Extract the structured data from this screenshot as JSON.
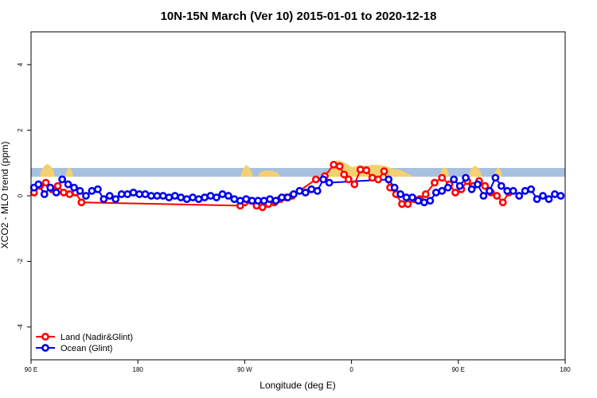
{
  "chart_data": {
    "type": "line",
    "title": "10N-15N March (Ver 10)   2015-01-01 to 2020-12-18",
    "xlabel": "Longitude (deg E)",
    "ylabel": "XCO2 - MLO trend (ppm)",
    "xlim": [
      90,
      450
    ],
    "ylim": [
      -5,
      5
    ],
    "x_ticks": [
      {
        "value": 90,
        "label": "90 E"
      },
      {
        "value": 162,
        "label": "180"
      },
      {
        "value": 234,
        "label": "90 W"
      },
      {
        "value": 306,
        "label": "0"
      },
      {
        "value": 378,
        "label": "90 E"
      },
      {
        "value": 450,
        "label": "180"
      }
    ],
    "y_ticks": [
      -4,
      -2,
      0,
      2,
      4
    ],
    "grid": false,
    "legend_position": "bottom-left",
    "colors": {
      "land": "#ff0000",
      "ocean": "#0000ee",
      "band": "#a8c0e0",
      "landmass": "#f5d070"
    },
    "series": [
      {
        "name": "Land (Nadir&Glint)",
        "color": "#ff0000",
        "x": [
          92,
          96,
          100,
          104,
          108,
          112,
          116,
          120,
          124,
          231,
          234,
          238,
          242,
          246,
          250,
          254,
          258,
          262,
          266,
          282,
          288,
          294,
          298,
          301,
          304,
          308,
          312,
          316,
          320,
          324,
          328,
          332,
          336,
          340,
          344,
          348,
          352,
          356,
          362,
          367,
          372,
          376,
          380,
          384,
          388,
          392,
          396,
          400,
          404,
          408,
          412
        ],
        "y": [
          0.1,
          0.3,
          0.4,
          0.2,
          0.3,
          0.1,
          0.05,
          0.1,
          -0.2,
          -0.3,
          -0.2,
          -0.15,
          -0.3,
          -0.35,
          -0.25,
          -0.2,
          -0.1,
          -0.05,
          0.0,
          0.5,
          0.6,
          0.95,
          0.9,
          0.65,
          0.5,
          0.35,
          0.8,
          0.78,
          0.55,
          0.5,
          0.75,
          0.25,
          0.05,
          -0.25,
          -0.25,
          -0.1,
          -0.1,
          0.05,
          0.4,
          0.55,
          0.35,
          0.1,
          0.2,
          0.45,
          0.3,
          0.45,
          0.3,
          0.1,
          0.0,
          -0.2,
          0.1
        ]
      },
      {
        "name": "Ocean (Glint)",
        "color": "#0000ee",
        "x": [
          92,
          95,
          99,
          103,
          107,
          111,
          115,
          119,
          123,
          127,
          131,
          135,
          139,
          143,
          147,
          151,
          155,
          159,
          163,
          167,
          171,
          175,
          179,
          183,
          187,
          191,
          195,
          199,
          203,
          207,
          211,
          215,
          219,
          223,
          227,
          231,
          235,
          239,
          243,
          247,
          251,
          255,
          259,
          263,
          267,
          271,
          275,
          279,
          283,
          287,
          291,
          331,
          335,
          339,
          343,
          347,
          351,
          355,
          359,
          363,
          367,
          371,
          375,
          379,
          383,
          387,
          391,
          395,
          399,
          403,
          407,
          411,
          415,
          419,
          423,
          427,
          431,
          435,
          439,
          443,
          447
        ],
        "y": [
          0.25,
          0.35,
          0.05,
          0.25,
          0.1,
          0.5,
          0.35,
          0.25,
          0.15,
          0.0,
          0.15,
          0.2,
          -0.1,
          0.0,
          -0.1,
          0.05,
          0.05,
          0.1,
          0.05,
          0.05,
          0.0,
          0.0,
          0.0,
          -0.05,
          0.0,
          -0.05,
          -0.1,
          -0.05,
          -0.1,
          -0.05,
          0.0,
          -0.05,
          0.05,
          0.0,
          -0.1,
          -0.15,
          -0.1,
          -0.15,
          -0.15,
          -0.15,
          -0.1,
          -0.15,
          -0.05,
          -0.05,
          0.05,
          0.15,
          0.1,
          0.2,
          0.15,
          0.5,
          0.4,
          0.5,
          0.25,
          0.05,
          -0.05,
          -0.05,
          -0.15,
          -0.2,
          -0.15,
          0.1,
          0.15,
          0.25,
          0.5,
          0.3,
          0.55,
          0.2,
          0.35,
          0.0,
          0.15,
          0.55,
          0.3,
          0.15,
          0.15,
          0.0,
          0.15,
          0.2,
          -0.1,
          0.0,
          -0.1,
          0.05,
          0.0
        ]
      }
    ]
  }
}
